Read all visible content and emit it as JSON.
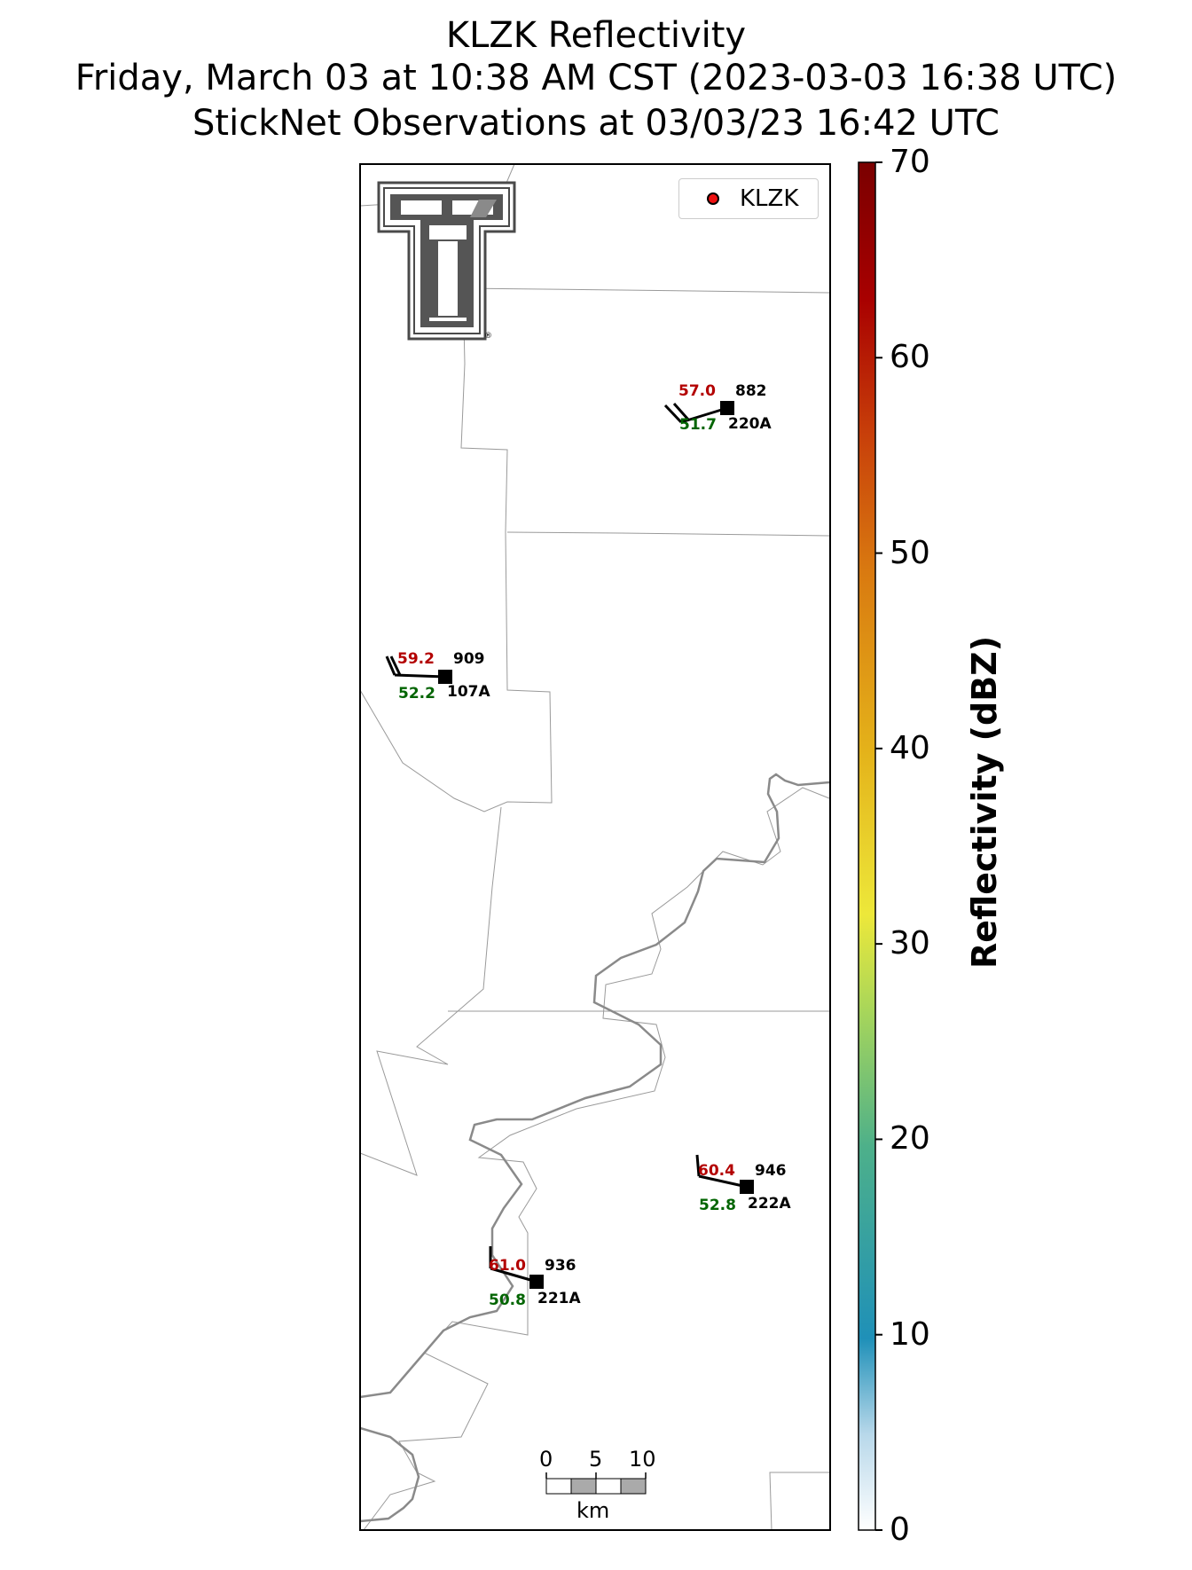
{
  "title": {
    "line1": "KLZK Reflectivity",
    "line2": "Friday, March 03 at 10:38 AM CST (2023-03-03 16:38 UTC)",
    "line3": "StickNet Observations at 03/03/23 16:42 UTC"
  },
  "legend": {
    "label": "KLZK",
    "marker_color": "#ee1111"
  },
  "logo": {
    "icon": "texas-tech-double-t-logo",
    "registered_mark": "®"
  },
  "colorbar": {
    "label": "Reflectivity (dBZ)",
    "ticks": [
      "0",
      "10",
      "20",
      "30",
      "40",
      "50",
      "60",
      "70"
    ],
    "range": [
      0,
      70
    ],
    "colors": [
      "#ffffff",
      "#b8d8ea",
      "#1f90b8",
      "#4db08a",
      "#a8d65a",
      "#ede83a",
      "#e4b21a",
      "#d97a10",
      "#c8400a",
      "#a80000",
      "#7a0000"
    ]
  },
  "scalebar": {
    "ticks": [
      "0",
      "5",
      "10"
    ],
    "unit": "km"
  },
  "stations": [
    {
      "id": "882",
      "probe": "220A",
      "temp": "57.0",
      "dewpoint": "51.7"
    },
    {
      "id": "909",
      "probe": "107A",
      "temp": "59.2",
      "dewpoint": "52.2"
    },
    {
      "id": "946",
      "probe": "222A",
      "temp": "60.4",
      "dewpoint": "52.8"
    },
    {
      "id": "936",
      "probe": "221A",
      "temp": "61.0",
      "dewpoint": "50.8"
    }
  ]
}
